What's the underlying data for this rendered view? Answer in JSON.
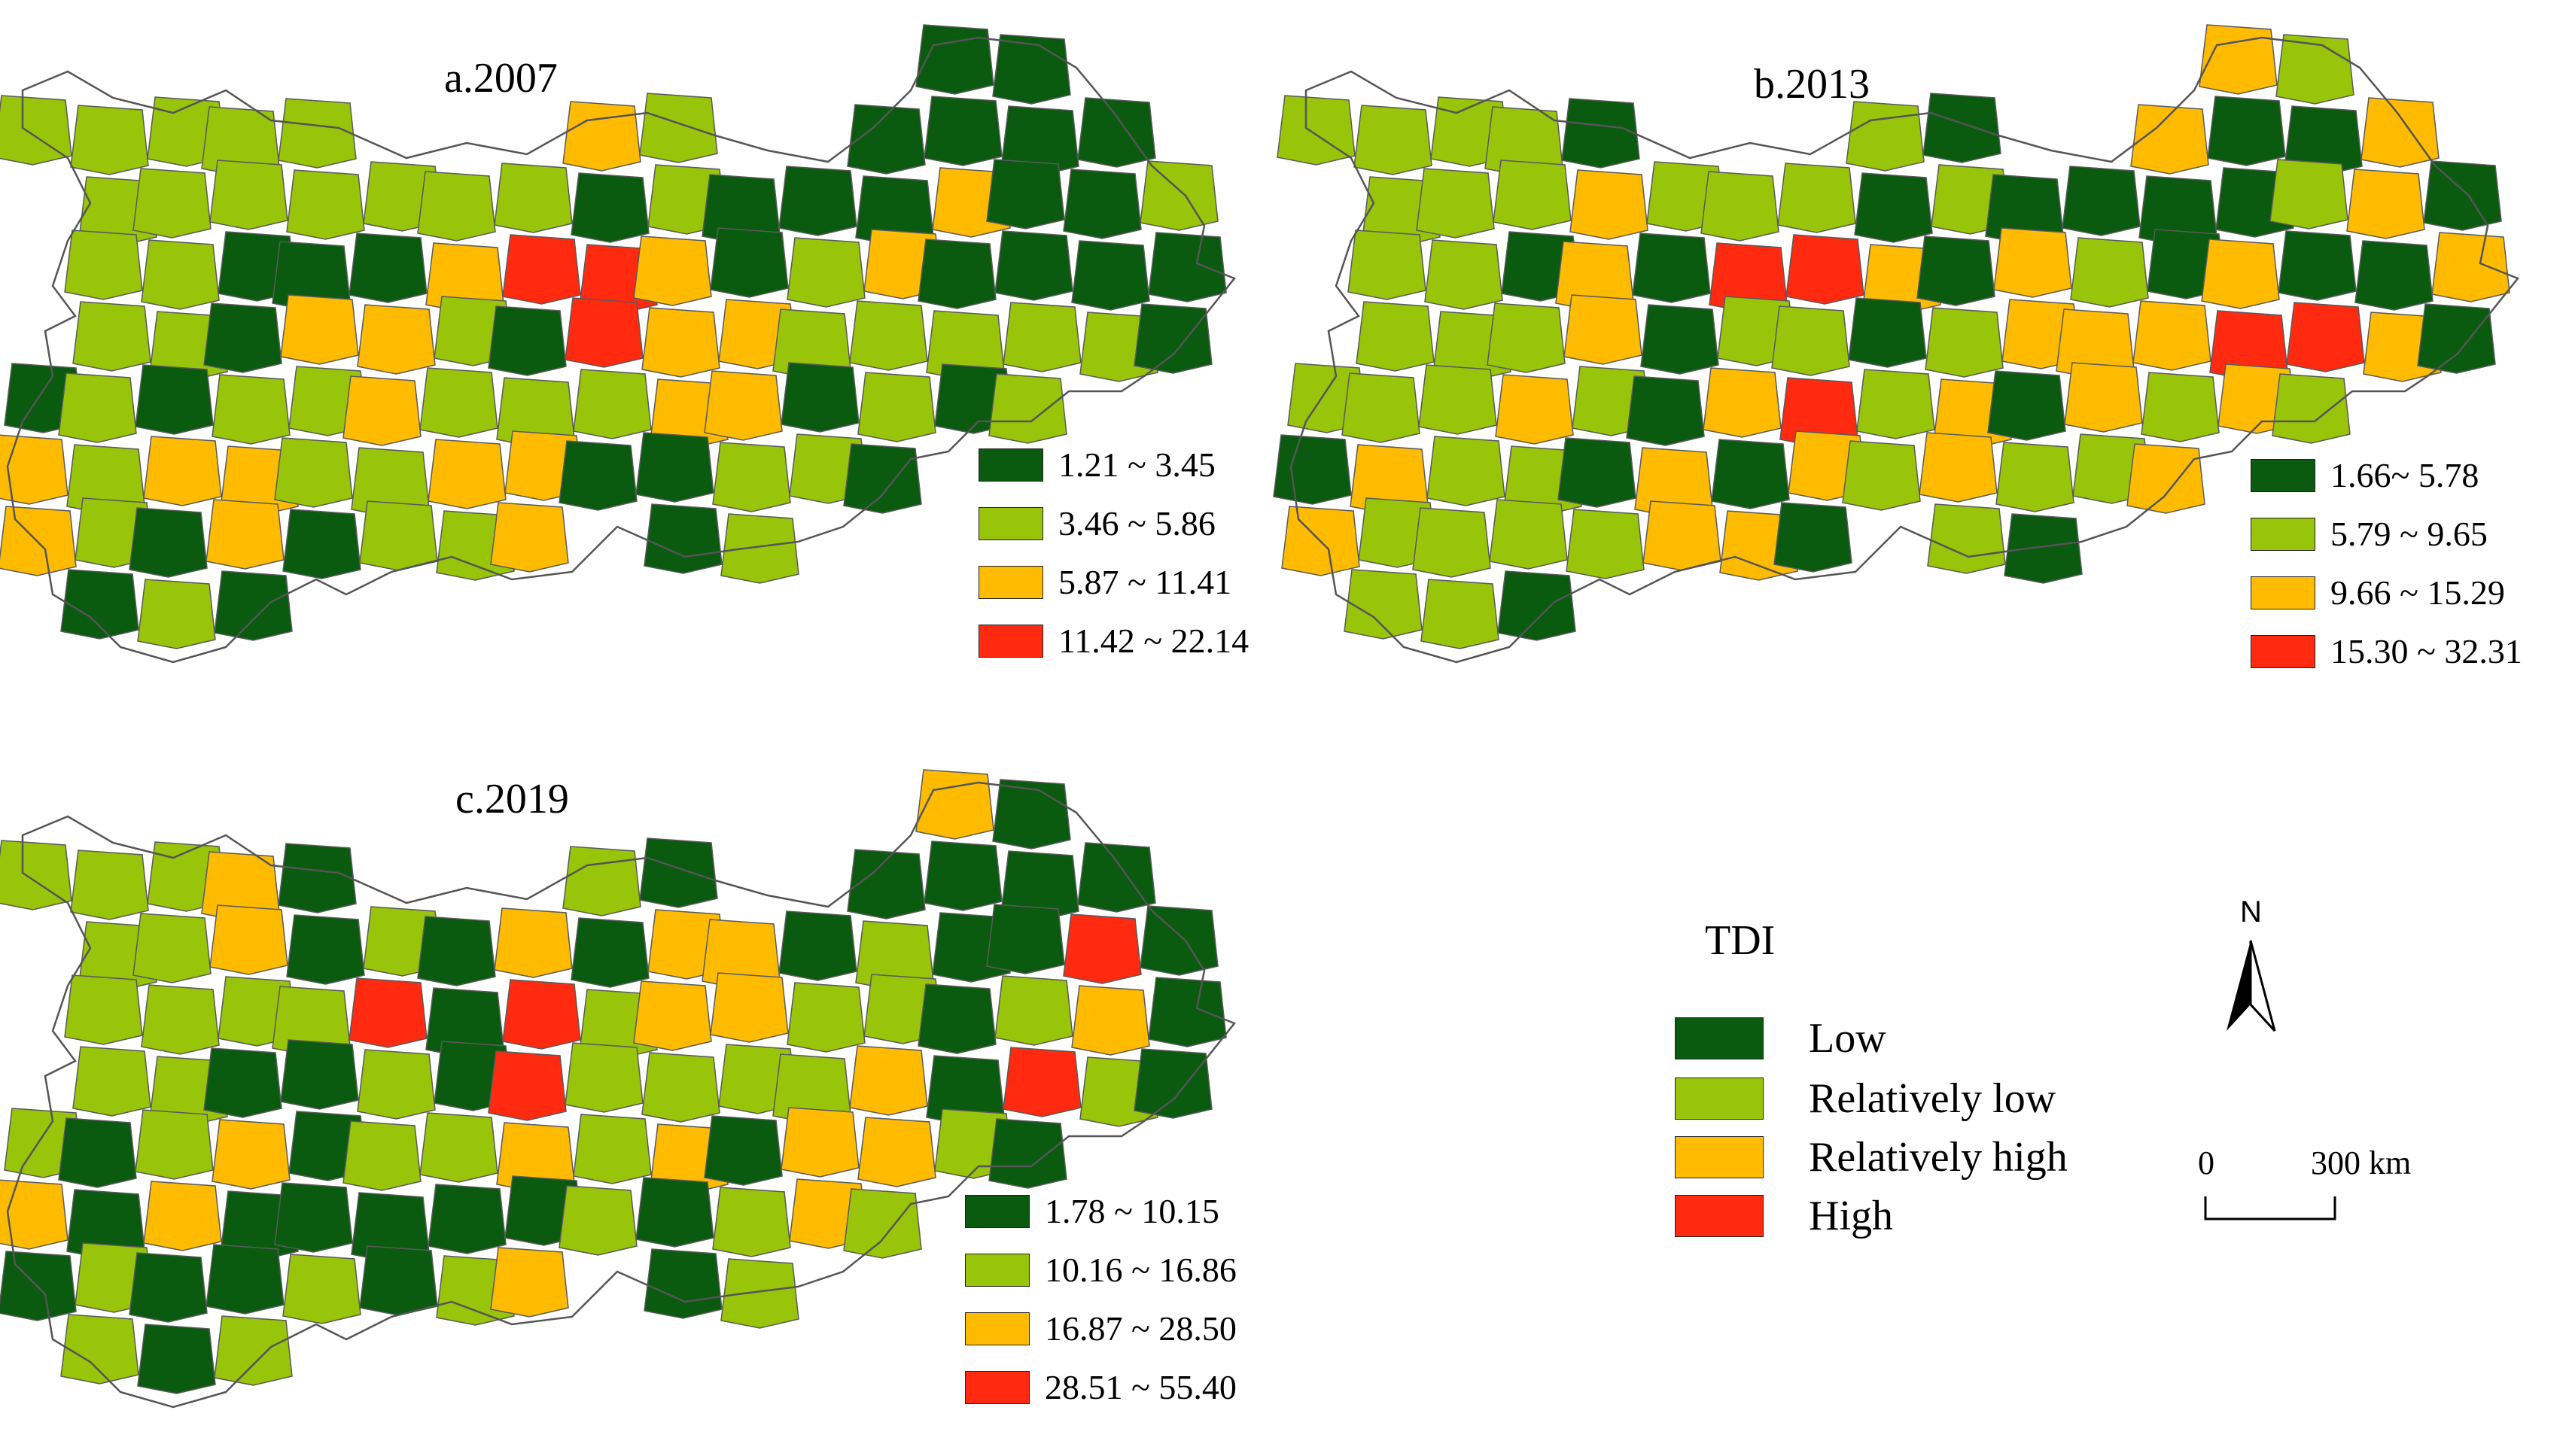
{
  "colors": {
    "low": "#0a5a10",
    "rel_low": "#98c40a",
    "rel_high": "#ffbb00",
    "high": "#ff2a10",
    "border": "#5a5a5a"
  },
  "panels": [
    {
      "title": "a.2007",
      "legend": [
        "1.21 ~ 3.45",
        "3.46 ~ 5.86",
        "5.87 ~ 11.41",
        "11.42 ~ 22.14"
      ]
    },
    {
      "title": "b.2013",
      "legend": [
        "1.66~ 5.78",
        "5.79 ~ 9.65",
        "9.66 ~ 15.29",
        "15.30 ~ 32.31"
      ]
    },
    {
      "title": "c.2019",
      "legend": [
        "1.78 ~ 10.15",
        "10.16 ~ 16.86",
        "16.87 ~ 28.50",
        "28.51 ~ 55.40"
      ]
    }
  ],
  "key": {
    "title": "TDI",
    "items": [
      "Low",
      "Relatively low",
      "Relatively high",
      "High"
    ]
  },
  "north_label": "N",
  "scale": {
    "start": "0",
    "end": "300 km"
  }
}
